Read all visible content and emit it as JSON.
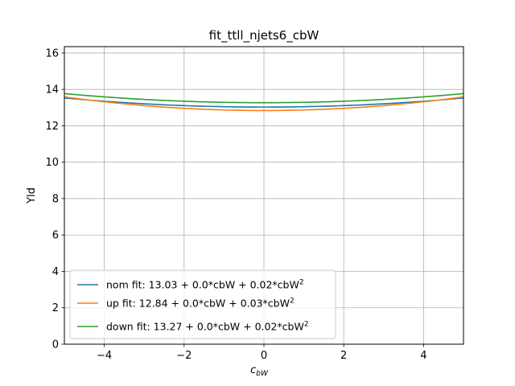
{
  "chart_data": {
    "type": "line",
    "title": "fit_ttll_njets6_cbW",
    "xlabel_main": "c",
    "xlabel_sub": "bW",
    "ylabel": "Yld",
    "xlim": [
      -5,
      5
    ],
    "ylim": [
      0,
      16.35
    ],
    "xticks": [
      -4,
      -2,
      0,
      2,
      4
    ],
    "xtick_labels": [
      "−4",
      "−2",
      "0",
      "2",
      "4"
    ],
    "yticks": [
      0,
      2,
      4,
      6,
      8,
      10,
      12,
      14,
      16
    ],
    "ytick_labels": [
      "0",
      "2",
      "4",
      "6",
      "8",
      "10",
      "12",
      "14",
      "16"
    ],
    "grid": true,
    "legend_position": "lower-left",
    "series": [
      {
        "name_main": "nom fit: 13.03 + 0.0*cbW + 0.02*cbW",
        "name_sup": "2",
        "color": "#1f77b4",
        "coefficients": [
          13.03,
          0.0,
          0.02
        ]
      },
      {
        "name_main": "up fit: 12.84 + 0.0*cbW + 0.03*cbW",
        "name_sup": "2",
        "color": "#ff7f0e",
        "coefficients": [
          12.84,
          0.0,
          0.03
        ]
      },
      {
        "name_main": "down fit: 13.27 + 0.0*cbW + 0.02*cbW",
        "name_sup": "2",
        "color": "#2ca02c",
        "coefficients": [
          13.27,
          0.0,
          0.02
        ]
      }
    ]
  }
}
